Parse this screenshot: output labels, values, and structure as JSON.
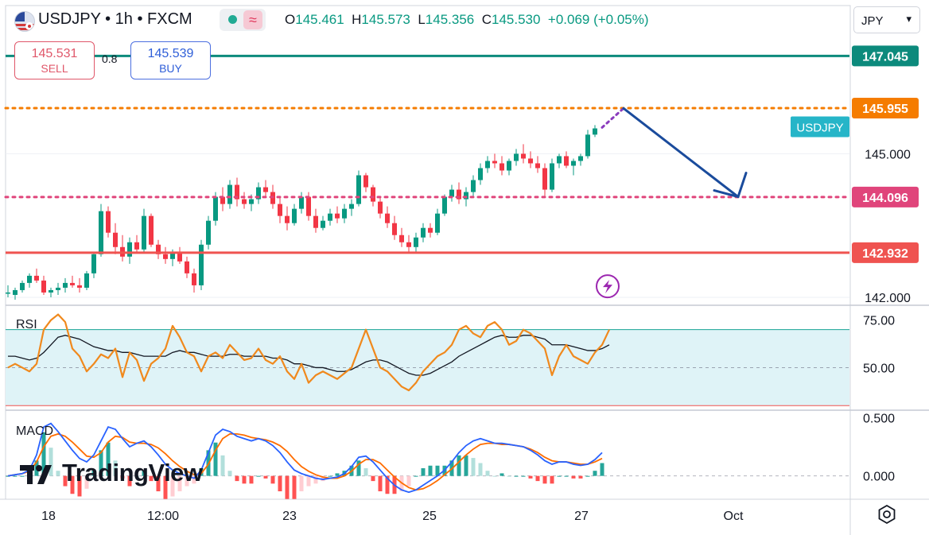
{
  "header": {
    "symbol": "USDJPY • 1h • FXCM",
    "open_label": "O",
    "open": "145.461",
    "high_label": "H",
    "high": "145.573",
    "low_label": "L",
    "low": "145.356",
    "close_label": "C",
    "close": "145.530",
    "change": "+0.069 (+0.05%)",
    "currency": "JPY",
    "currency_caret": "▾"
  },
  "trade": {
    "sell_price": "145.531",
    "sell_label": "SELL",
    "spread": "0.8",
    "buy_price": "145.539",
    "buy_label": "BUY"
  },
  "branding": {
    "logo_text": "TradingView"
  },
  "panes": {
    "rsi_label": "RSI",
    "macd_label": "MACD"
  },
  "colors": {
    "up": "#089981",
    "down": "#f23645",
    "teal_line": "#0c8a7c",
    "orange": "#f57c00",
    "pink": "#e0457b",
    "red_line": "#ef5350",
    "arrow": "#1a4b9c",
    "rsi": "#f0891d",
    "macd": "#2962ff",
    "signal": "#ff6d00",
    "symbol_tag": "#26b5c8"
  },
  "icons": [
    "us-japan-flag-icon",
    "market-open-dot-icon",
    "wave-icon",
    "lightning-icon",
    "gear-icon"
  ],
  "chart_data": [
    {
      "type": "candlestick",
      "symbol_tag": "USDJPY",
      "x_ticks": [
        "18",
        "12:00",
        "23",
        "25",
        "27",
        "Oct"
      ],
      "y_ticks": [
        142.0,
        145.0
      ],
      "ylim": [
        141.85,
        147.35
      ],
      "candles": [
        [
          142.1,
          142.25,
          142.0,
          142.1
        ],
        [
          142.05,
          142.2,
          141.95,
          142.15
        ],
        [
          142.15,
          142.35,
          142.1,
          142.3
        ],
        [
          142.3,
          142.5,
          142.2,
          142.45
        ],
        [
          142.45,
          142.6,
          142.3,
          142.35
        ],
        [
          142.35,
          142.45,
          142.05,
          142.1
        ],
        [
          142.1,
          142.2,
          142.0,
          142.15
        ],
        [
          142.15,
          142.3,
          142.05,
          142.2
        ],
        [
          142.2,
          142.4,
          142.1,
          142.3
        ],
        [
          142.3,
          142.45,
          142.2,
          142.25
        ],
        [
          142.25,
          142.4,
          142.1,
          142.2
        ],
        [
          142.2,
          142.55,
          142.15,
          142.5
        ],
        [
          142.5,
          142.95,
          142.4,
          142.9
        ],
        [
          142.9,
          143.95,
          142.85,
          143.8
        ],
        [
          143.8,
          143.9,
          143.25,
          143.35
        ],
        [
          143.35,
          143.55,
          142.9,
          143.05
        ],
        [
          143.05,
          143.3,
          142.75,
          142.85
        ],
        [
          142.85,
          143.25,
          142.7,
          143.15
        ],
        [
          143.15,
          143.3,
          142.95,
          143.0
        ],
        [
          143.0,
          143.85,
          142.95,
          143.7
        ],
        [
          143.7,
          143.75,
          143.05,
          143.1
        ],
        [
          143.1,
          143.2,
          142.8,
          142.9
        ],
        [
          142.9,
          143.05,
          142.7,
          142.8
        ],
        [
          142.8,
          143.0,
          142.65,
          142.95
        ],
        [
          142.95,
          143.05,
          142.7,
          142.75
        ],
        [
          142.75,
          142.85,
          142.4,
          142.5
        ],
        [
          142.5,
          142.6,
          142.1,
          142.25
        ],
        [
          142.25,
          143.2,
          142.15,
          143.1
        ],
        [
          143.1,
          143.7,
          143.0,
          143.6
        ],
        [
          143.6,
          144.2,
          143.5,
          144.1
        ],
        [
          144.1,
          144.3,
          143.8,
          143.95
        ],
        [
          143.95,
          144.45,
          143.85,
          144.35
        ],
        [
          144.35,
          144.5,
          143.9,
          144.05
        ],
        [
          144.05,
          144.2,
          143.85,
          143.95
        ],
        [
          143.95,
          144.15,
          143.8,
          144.05
        ],
        [
          144.05,
          144.4,
          143.95,
          144.3
        ],
        [
          144.3,
          144.45,
          144.1,
          144.2
        ],
        [
          144.2,
          144.35,
          143.85,
          143.95
        ],
        [
          143.95,
          144.1,
          143.55,
          143.7
        ],
        [
          143.7,
          143.9,
          143.4,
          143.55
        ],
        [
          143.55,
          143.95,
          143.5,
          143.85
        ],
        [
          143.85,
          144.2,
          143.75,
          144.1
        ],
        [
          144.1,
          144.2,
          143.6,
          143.7
        ],
        [
          143.7,
          143.85,
          143.35,
          143.45
        ],
        [
          143.45,
          143.7,
          143.4,
          143.6
        ],
        [
          143.6,
          143.85,
          143.5,
          143.75
        ],
        [
          143.75,
          143.9,
          143.55,
          143.65
        ],
        [
          143.65,
          143.95,
          143.55,
          143.85
        ],
        [
          143.85,
          144.05,
          143.7,
          143.95
        ],
        [
          143.95,
          144.65,
          143.9,
          144.55
        ],
        [
          144.55,
          144.6,
          144.2,
          144.3
        ],
        [
          144.3,
          144.35,
          143.9,
          144.0
        ],
        [
          144.0,
          144.1,
          143.65,
          143.75
        ],
        [
          143.75,
          143.9,
          143.45,
          143.55
        ],
        [
          143.55,
          143.7,
          143.2,
          143.3
        ],
        [
          143.3,
          143.45,
          143.05,
          143.15
        ],
        [
          143.15,
          143.3,
          142.95,
          143.05
        ],
        [
          143.05,
          143.35,
          142.95,
          143.25
        ],
        [
          143.25,
          143.55,
          143.15,
          143.45
        ],
        [
          143.45,
          143.55,
          143.25,
          143.35
        ],
        [
          143.35,
          143.85,
          143.3,
          143.75
        ],
        [
          143.75,
          144.15,
          143.7,
          144.1
        ],
        [
          144.1,
          144.35,
          144.0,
          144.25
        ],
        [
          144.25,
          144.4,
          143.95,
          144.05
        ],
        [
          144.05,
          144.3,
          143.9,
          144.2
        ],
        [
          144.2,
          144.55,
          144.1,
          144.45
        ],
        [
          144.45,
          144.8,
          144.35,
          144.7
        ],
        [
          144.7,
          144.95,
          144.6,
          144.85
        ],
        [
          144.85,
          145.0,
          144.7,
          144.8
        ],
        [
          144.8,
          144.95,
          144.55,
          144.65
        ],
        [
          144.65,
          144.9,
          144.55,
          144.85
        ],
        [
          144.85,
          145.1,
          144.75,
          145.0
        ],
        [
          145.0,
          145.2,
          144.8,
          144.9
        ],
        [
          144.9,
          145.05,
          144.7,
          144.8
        ],
        [
          144.8,
          144.95,
          144.6,
          144.7
        ],
        [
          144.7,
          144.8,
          144.1,
          144.25
        ],
        [
          144.25,
          144.9,
          144.2,
          144.8
        ],
        [
          144.8,
          145.0,
          144.7,
          144.95
        ],
        [
          144.95,
          145.05,
          144.7,
          144.75
        ],
        [
          144.75,
          144.9,
          144.55,
          144.85
        ],
        [
          144.85,
          145.0,
          144.75,
          144.95
        ],
        [
          144.95,
          145.5,
          144.9,
          145.4
        ],
        [
          145.4,
          145.6,
          145.35,
          145.53
        ]
      ],
      "horizontal_levels": [
        {
          "value": 147.045,
          "label": "147.045",
          "style": "solid",
          "color": "#0c8a7c"
        },
        {
          "value": 145.955,
          "label": "145.955",
          "style": "dotted",
          "color": "#f57c00"
        },
        {
          "value": 144.096,
          "label": "144.096",
          "style": "dotted",
          "color": "#e0457b"
        },
        {
          "value": 142.932,
          "label": "142.932",
          "style": "solid",
          "color": "#ef5350"
        }
      ],
      "projection": {
        "path": [
          [
            83,
            145.55
          ],
          [
            86,
            145.95
          ],
          [
            102,
            144.1
          ]
        ],
        "arrowhead": "down-right"
      }
    },
    {
      "type": "line",
      "name": "RSI",
      "y_ticks": [
        50.0,
        75.0
      ],
      "ylim": [
        28,
        82
      ],
      "band": [
        30,
        70
      ],
      "series": [
        {
          "values": [
            50,
            52,
            50,
            48,
            52,
            70,
            75,
            78,
            74,
            60,
            56,
            48,
            52,
            57,
            55,
            60,
            45,
            58,
            54,
            43,
            52,
            55,
            60,
            72,
            66,
            58,
            56,
            48,
            56,
            58,
            55,
            62,
            58,
            54,
            55,
            60,
            54,
            52,
            56,
            48,
            44,
            52,
            42,
            46,
            48,
            46,
            44,
            47,
            50,
            60,
            70,
            60,
            50,
            48,
            44,
            40,
            38,
            42,
            48,
            52,
            56,
            58,
            62,
            70,
            72,
            68,
            66,
            72,
            74,
            70,
            62,
            64,
            70,
            68,
            64,
            60,
            46,
            56,
            62,
            56,
            54,
            52,
            58,
            62,
            70
          ]
        },
        {
          "values": [
            56,
            56,
            55,
            54,
            55,
            58,
            62,
            66,
            67,
            66,
            65,
            63,
            61,
            60,
            59,
            59,
            58,
            58,
            57,
            56,
            56,
            56,
            56,
            58,
            59,
            58,
            58,
            57,
            56,
            56,
            56,
            57,
            57,
            56,
            56,
            56,
            56,
            55,
            55,
            54,
            52,
            52,
            51,
            50,
            50,
            49,
            48,
            48,
            49,
            51,
            53,
            54,
            54,
            53,
            51,
            49,
            47,
            46,
            46,
            47,
            49,
            51,
            53,
            56,
            58,
            60,
            62,
            64,
            66,
            67,
            66,
            66,
            67,
            67,
            66,
            65,
            62,
            62,
            62,
            61,
            60,
            59,
            59,
            60,
            62
          ]
        }
      ]
    },
    {
      "type": "line",
      "name": "MACD",
      "y_ticks": [
        0.0,
        0.5
      ],
      "ylim": [
        -0.2,
        0.55
      ],
      "series": [
        {
          "values": [
            0.0,
            0.01,
            0.02,
            0.05,
            0.18,
            0.42,
            0.45,
            0.38,
            0.3,
            0.22,
            0.15,
            0.12,
            0.18,
            0.3,
            0.42,
            0.4,
            0.32,
            0.25,
            0.28,
            0.3,
            0.25,
            0.18,
            0.1,
            0.05,
            0.02,
            0.0,
            -0.02,
            0.05,
            0.2,
            0.35,
            0.4,
            0.38,
            0.34,
            0.32,
            0.3,
            0.32,
            0.3,
            0.26,
            0.2,
            0.12,
            0.05,
            0.02,
            0.0,
            -0.02,
            -0.03,
            -0.02,
            -0.01,
            0.02,
            0.08,
            0.16,
            0.17,
            0.12,
            0.05,
            -0.02,
            -0.08,
            -0.12,
            -0.14,
            -0.12,
            -0.08,
            -0.04,
            0.0,
            0.05,
            0.12,
            0.2,
            0.26,
            0.3,
            0.32,
            0.3,
            0.28,
            0.28,
            0.27,
            0.26,
            0.25,
            0.22,
            0.18,
            0.13,
            0.1,
            0.12,
            0.12,
            0.1,
            0.09,
            0.1,
            0.14,
            0.2
          ]
        },
        {
          "values": [
            0.0,
            0.01,
            0.02,
            0.04,
            0.12,
            0.25,
            0.34,
            0.36,
            0.34,
            0.29,
            0.23,
            0.17,
            0.16,
            0.2,
            0.29,
            0.34,
            0.33,
            0.29,
            0.28,
            0.28,
            0.27,
            0.24,
            0.19,
            0.13,
            0.08,
            0.04,
            0.01,
            0.02,
            0.1,
            0.22,
            0.32,
            0.36,
            0.36,
            0.35,
            0.33,
            0.32,
            0.31,
            0.29,
            0.26,
            0.21,
            0.14,
            0.08,
            0.04,
            0.01,
            -0.01,
            -0.02,
            -0.02,
            0.0,
            0.04,
            0.1,
            0.14,
            0.14,
            0.11,
            0.05,
            -0.01,
            -0.06,
            -0.1,
            -0.12,
            -0.11,
            -0.08,
            -0.04,
            0.01,
            0.06,
            0.12,
            0.18,
            0.23,
            0.27,
            0.28,
            0.28,
            0.27,
            0.27,
            0.26,
            0.25,
            0.23,
            0.2,
            0.16,
            0.13,
            0.12,
            0.12,
            0.11,
            0.1,
            0.1,
            0.12,
            0.15
          ]
        }
      ]
    }
  ]
}
